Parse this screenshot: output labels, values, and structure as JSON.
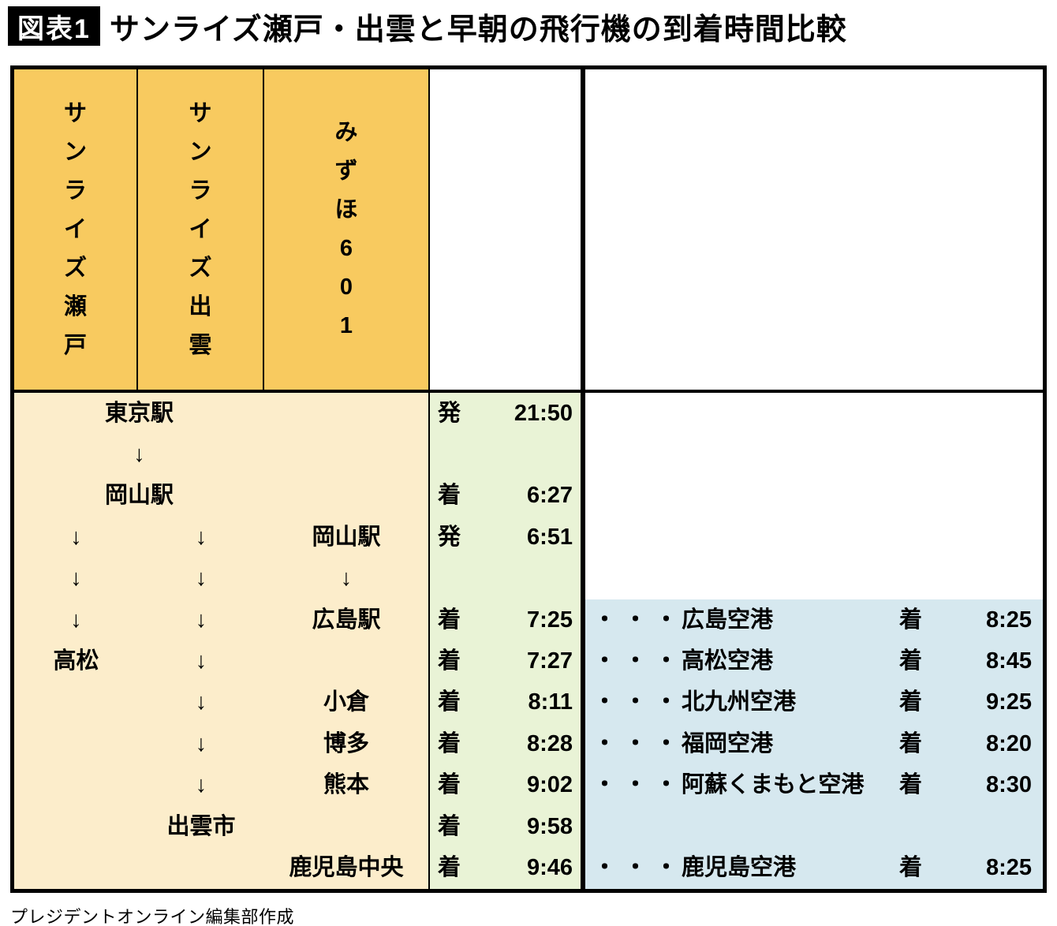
{
  "page": {
    "figure_label": "図表1",
    "title": "サンライズ瀬戸・出雲と早朝の飛行機の到着時間比較",
    "credit": "プレジデントオンライン編集部作成"
  },
  "colors": {
    "header_orange": "#F8CA5F",
    "body_cream": "#FCEDCB",
    "time_green": "#E9F3D6",
    "flight_blue": "#D6E8EF",
    "border_black": "#000000"
  },
  "table": {
    "dots": "・・・",
    "columns": [
      {
        "label": "サンライズ瀬戸"
      },
      {
        "label": "サンライズ出雲"
      },
      {
        "label": "みずほ601"
      }
    ],
    "rows": [
      {
        "span": true,
        "c12": "東京駅",
        "c3": "",
        "mark": "発",
        "time": "21:50",
        "blue": false,
        "flight": null
      },
      {
        "span": true,
        "c12": "↓",
        "c3": "",
        "mark": "",
        "time": "",
        "blue": false,
        "flight": null
      },
      {
        "span": true,
        "c12": "岡山駅",
        "c3": "",
        "mark": "着",
        "time": "6:27",
        "blue": false,
        "flight": null
      },
      {
        "span": false,
        "c1": "↓",
        "c2": "↓",
        "c3": "岡山駅",
        "mark": "発",
        "time": "6:51",
        "blue": false,
        "flight": null
      },
      {
        "span": false,
        "c1": "↓",
        "c2": "↓",
        "c3": "↓",
        "mark": "",
        "time": "",
        "blue": false,
        "flight": null
      },
      {
        "span": false,
        "c1": "↓",
        "c2": "↓",
        "c3": "広島駅",
        "mark": "着",
        "time": "7:25",
        "blue": true,
        "flight": {
          "airport": "広島空港",
          "mark": "着",
          "time": "8:25"
        }
      },
      {
        "span": false,
        "c1": "高松",
        "c2": "↓",
        "c3": "",
        "mark": "着",
        "time": "7:27",
        "blue": true,
        "flight": {
          "airport": "高松空港",
          "mark": "着",
          "time": "8:45"
        }
      },
      {
        "span": false,
        "c1": "",
        "c2": "↓",
        "c3": "小倉",
        "mark": "着",
        "time": "8:11",
        "blue": true,
        "flight": {
          "airport": "北九州空港",
          "mark": "着",
          "time": "9:25"
        }
      },
      {
        "span": false,
        "c1": "",
        "c2": "↓",
        "c3": "博多",
        "mark": "着",
        "time": "8:28",
        "blue": true,
        "flight": {
          "airport": "福岡空港",
          "mark": "着",
          "time": "8:20"
        }
      },
      {
        "span": false,
        "c1": "",
        "c2": "↓",
        "c3": "熊本",
        "mark": "着",
        "time": "9:02",
        "blue": true,
        "flight": {
          "airport": "阿蘇くまもと空港",
          "mark": "着",
          "time": "8:30"
        }
      },
      {
        "span": false,
        "c1": "",
        "c2": "出雲市",
        "c3": "",
        "mark": "着",
        "time": "9:58",
        "blue": true,
        "flight": null
      },
      {
        "span": false,
        "c1": "",
        "c2": "",
        "c3": "鹿児島中央",
        "mark": "着",
        "time": "9:46",
        "blue": true,
        "flight": {
          "airport": "鹿児島空港",
          "mark": "着",
          "time": "8:25"
        }
      }
    ]
  },
  "chart_data": {
    "type": "table",
    "title": "サンライズ瀬戸・出雲と早朝の飛行機の到着時間比較",
    "train_columns": [
      "サンライズ瀬戸",
      "サンライズ出雲",
      "みずほ601"
    ],
    "train_times": [
      {
        "station": "東京駅",
        "event": "発",
        "time": "21:50",
        "trains": [
          "サンライズ瀬戸",
          "サンライズ出雲"
        ]
      },
      {
        "station": "岡山駅",
        "event": "着",
        "time": "6:27",
        "trains": [
          "サンライズ瀬戸",
          "サンライズ出雲"
        ]
      },
      {
        "station": "岡山駅",
        "event": "発",
        "time": "6:51",
        "trains": [
          "みずほ601"
        ]
      },
      {
        "station": "広島駅",
        "event": "着",
        "time": "7:25",
        "trains": [
          "みずほ601"
        ]
      },
      {
        "station": "高松",
        "event": "着",
        "time": "7:27",
        "trains": [
          "サンライズ瀬戸"
        ]
      },
      {
        "station": "小倉",
        "event": "着",
        "time": "8:11",
        "trains": [
          "みずほ601"
        ]
      },
      {
        "station": "博多",
        "event": "着",
        "time": "8:28",
        "trains": [
          "みずほ601"
        ]
      },
      {
        "station": "熊本",
        "event": "着",
        "time": "9:02",
        "trains": [
          "みずほ601"
        ]
      },
      {
        "station": "出雲市",
        "event": "着",
        "time": "9:58",
        "trains": [
          "サンライズ出雲"
        ]
      },
      {
        "station": "鹿児島中央",
        "event": "着",
        "time": "9:46",
        "trains": [
          "みずほ601"
        ]
      }
    ],
    "flight_times": [
      {
        "airport": "広島空港",
        "event": "着",
        "time": "8:25"
      },
      {
        "airport": "高松空港",
        "event": "着",
        "time": "8:45"
      },
      {
        "airport": "北九州空港",
        "event": "着",
        "time": "9:25"
      },
      {
        "airport": "福岡空港",
        "event": "着",
        "time": "8:20"
      },
      {
        "airport": "阿蘇くまもと空港",
        "event": "着",
        "time": "8:30"
      },
      {
        "airport": "鹿児島空港",
        "event": "着",
        "time": "8:25"
      }
    ]
  }
}
